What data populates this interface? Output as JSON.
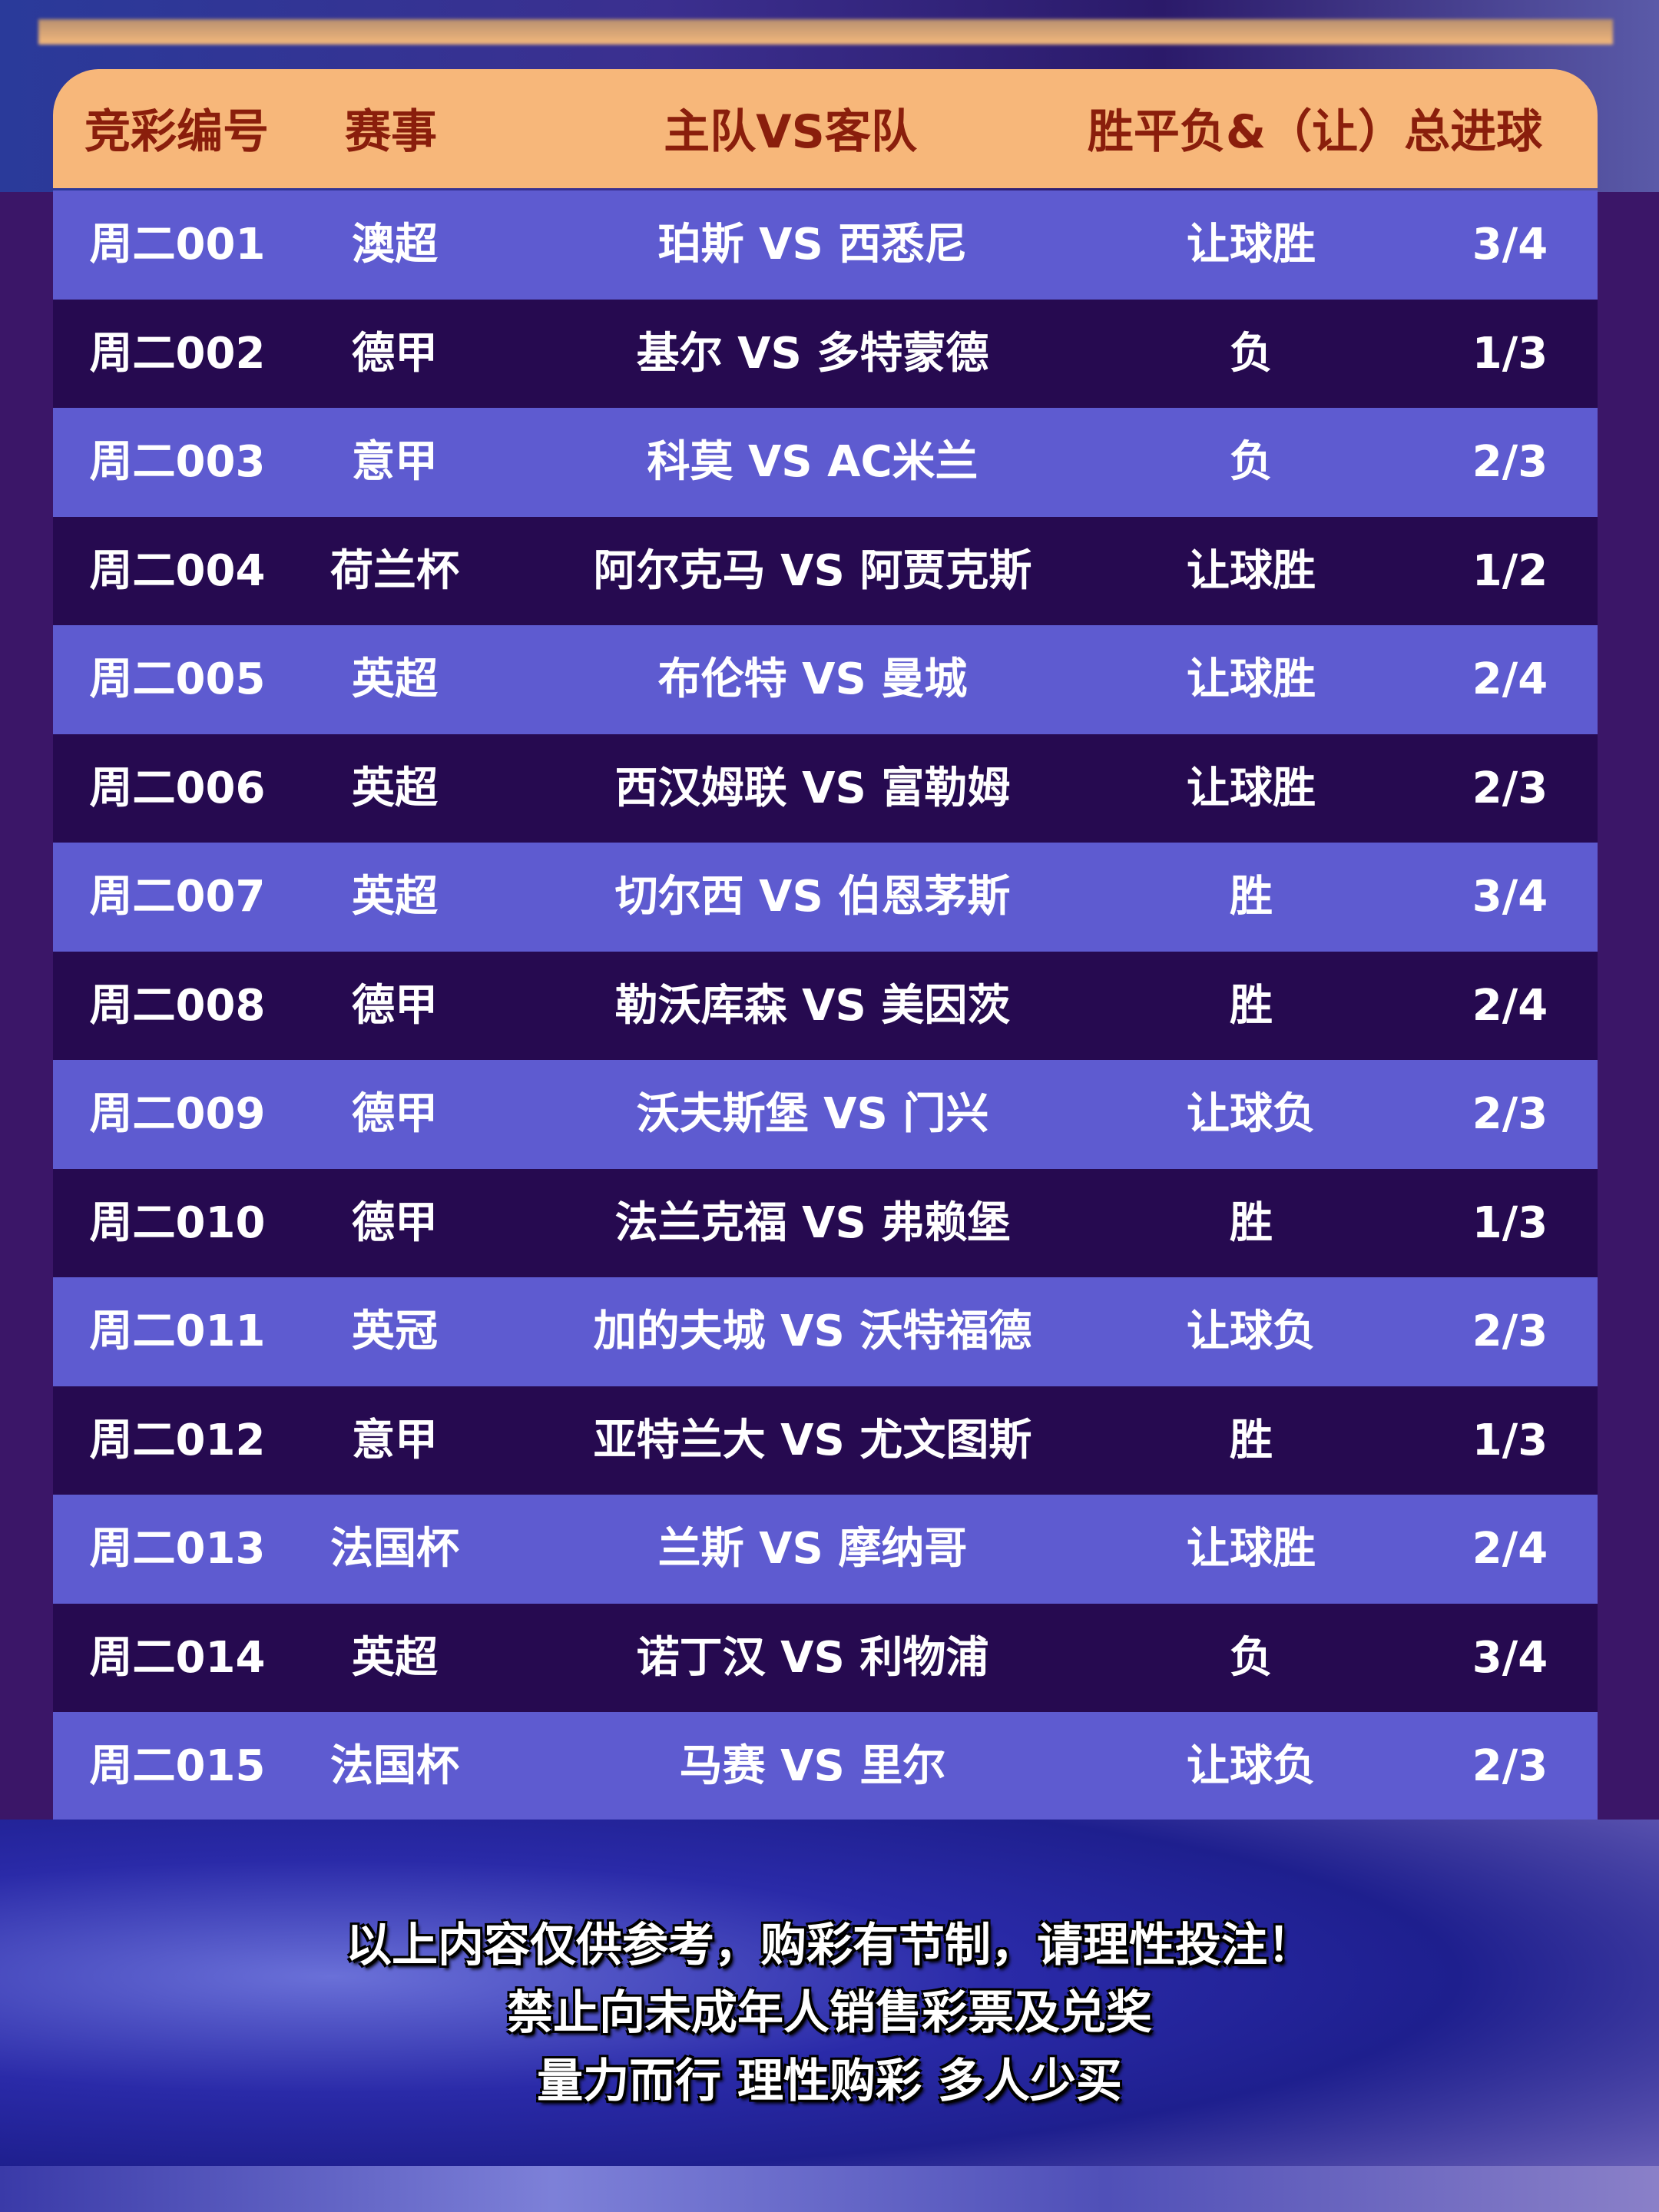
{
  "colors": {
    "header_bg": "#f7b77a",
    "header_text": "#8a1e0c",
    "row_light": "#5e5bd0",
    "row_dark": "#260a50",
    "page_bg": "#3b1668"
  },
  "header": [
    "竞彩编号",
    "赛事",
    "主队VS客队",
    "胜平负&（让）总进球"
  ],
  "rows": [
    {
      "id": "周二001",
      "league": "澳超",
      "match": "珀斯 VS 西悉尼",
      "result": "让球胜",
      "goals": "3/4"
    },
    {
      "id": "周二002",
      "league": "德甲",
      "match": "基尔 VS 多特蒙德",
      "result": "负",
      "goals": "1/3"
    },
    {
      "id": "周二003",
      "league": "意甲",
      "match": "科莫 VS AC米兰",
      "result": "负",
      "goals": "2/3"
    },
    {
      "id": "周二004",
      "league": "荷兰杯",
      "match": "阿尔克马 VS 阿贾克斯",
      "result": "让球胜",
      "goals": "1/2"
    },
    {
      "id": "周二005",
      "league": "英超",
      "match": "布伦特 VS 曼城",
      "result": "让球胜",
      "goals": "2/4"
    },
    {
      "id": "周二006",
      "league": "英超",
      "match": "西汉姆联 VS 富勒姆",
      "result": "让球胜",
      "goals": "2/3"
    },
    {
      "id": "周二007",
      "league": "英超",
      "match": "切尔西 VS 伯恩茅斯",
      "result": "胜",
      "goals": "3/4"
    },
    {
      "id": "周二008",
      "league": "德甲",
      "match": "勒沃库森 VS 美因茨",
      "result": "胜",
      "goals": "2/4"
    },
    {
      "id": "周二009",
      "league": "德甲",
      "match": "沃夫斯堡 VS 门兴",
      "result": "让球负",
      "goals": "2/3"
    },
    {
      "id": "周二010",
      "league": "德甲",
      "match": "法兰克福 VS 弗赖堡",
      "result": "胜",
      "goals": "1/3"
    },
    {
      "id": "周二011",
      "league": "英冠",
      "match": "加的夫城 VS 沃特福德",
      "result": "让球负",
      "goals": "2/3"
    },
    {
      "id": "周二012",
      "league": "意甲",
      "match": "亚特兰大 VS 尤文图斯",
      "result": "胜",
      "goals": "1/3"
    },
    {
      "id": "周二013",
      "league": "法国杯",
      "match": "兰斯 VS 摩纳哥",
      "result": "让球胜",
      "goals": "2/4"
    },
    {
      "id": "周二014",
      "league": "英超",
      "match": "诺丁汉 VS 利物浦",
      "result": "负",
      "goals": "3/4"
    },
    {
      "id": "周二015",
      "league": "法国杯",
      "match": "马赛 VS 里尔",
      "result": "让球负",
      "goals": "2/3"
    }
  ],
  "notice": [
    "以上内容仅供参考，购彩有节制，请理性投注！",
    "禁止向未成年人销售彩票及兑奖",
    "量力而行 理性购彩 多人少买"
  ]
}
